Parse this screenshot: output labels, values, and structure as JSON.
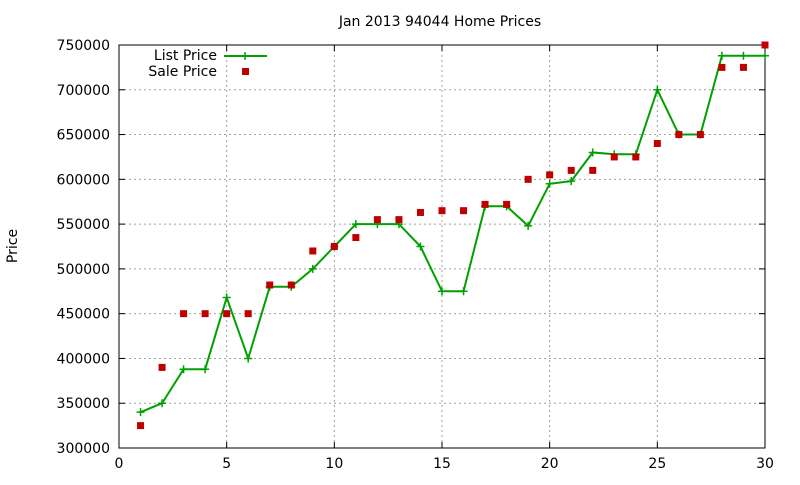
{
  "chart_data": {
    "type": "line",
    "title": "Jan 2013 94044 Home Prices",
    "xlabel": "",
    "ylabel": "Price",
    "xlim": [
      0,
      30
    ],
    "ylim": [
      300000,
      750000
    ],
    "xticks": [
      0,
      5,
      10,
      15,
      20,
      25,
      30
    ],
    "yticks": [
      300000,
      350000,
      400000,
      450000,
      500000,
      550000,
      600000,
      650000,
      700000,
      750000
    ],
    "grid": true,
    "legend_position": "top-left",
    "series": [
      {
        "name": "List Price",
        "style": "line-cross",
        "color": "#00a000",
        "x": [
          1,
          2,
          3,
          4,
          5,
          6,
          7,
          8,
          9,
          10,
          11,
          12,
          13,
          14,
          15,
          16,
          17,
          18,
          19,
          20,
          21,
          22,
          23,
          24,
          25,
          26,
          27,
          28,
          29,
          30
        ],
        "y": [
          340000,
          350000,
          388000,
          388000,
          468000,
          400000,
          480000,
          480000,
          500000,
          525000,
          550000,
          550000,
          550000,
          525000,
          475000,
          475000,
          570000,
          570000,
          548000,
          595000,
          598000,
          630000,
          628000,
          628000,
          700000,
          650000,
          650000,
          738000,
          738000,
          738000
        ]
      },
      {
        "name": "Sale Price",
        "style": "points-square",
        "color": "#c00000",
        "x": [
          1,
          2,
          3,
          4,
          5,
          6,
          7,
          8,
          9,
          10,
          11,
          12,
          13,
          14,
          15,
          16,
          17,
          18,
          19,
          20,
          21,
          22,
          23,
          24,
          25,
          26,
          27,
          28,
          29,
          30
        ],
        "y": [
          325000,
          390000,
          450000,
          450000,
          450000,
          450000,
          482000,
          482000,
          520000,
          525000,
          535000,
          555000,
          555000,
          563000,
          565000,
          565000,
          572000,
          572000,
          600000,
          605000,
          610000,
          610000,
          625000,
          625000,
          640000,
          650000,
          650000,
          725000,
          725000,
          750000
        ]
      }
    ]
  }
}
